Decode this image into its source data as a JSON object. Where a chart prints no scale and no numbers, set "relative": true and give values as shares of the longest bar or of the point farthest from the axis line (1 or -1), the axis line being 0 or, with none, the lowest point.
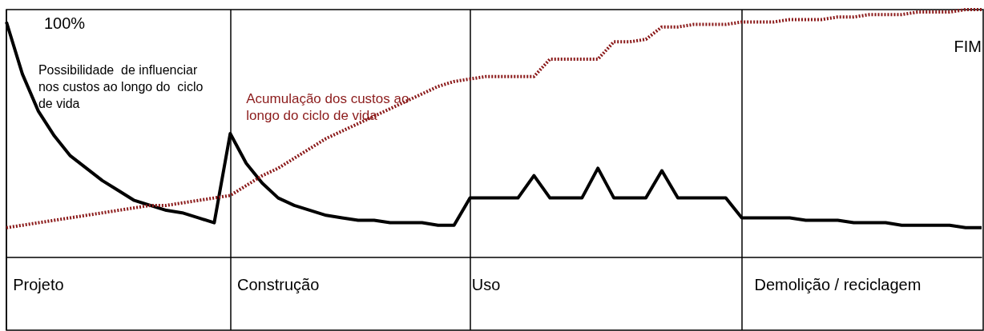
{
  "chart_data": {
    "type": "line",
    "relative": true,
    "legend": false,
    "grid": "x",
    "tick_labels": "x",
    "marker": "none",
    "categories": [
      null,
      null,
      "Projeto",
      null,
      null,
      null,
      null,
      null,
      null,
      null,
      null,
      null,
      null,
      null,
      null,
      null,
      null,
      "Construção",
      null,
      null,
      null,
      null,
      null,
      null,
      null,
      null,
      null,
      null,
      null,
      null,
      "Uso",
      null,
      null,
      null,
      null,
      null,
      null,
      null,
      null,
      null,
      null,
      null,
      null,
      null,
      null,
      null,
      null,
      null,
      null,
      null,
      null,
      null,
      "Demolição / reciclagem",
      null,
      null,
      null,
      null,
      null,
      null,
      null,
      null,
      null
    ],
    "series": [
      {
        "name": "Possibilidade  de influenciar nos custos ao longo do  ciclo de vida",
        "color": "#000000",
        "line_style": "solid",
        "values": [
          0.95,
          0.74,
          0.59,
          0.49,
          0.41,
          0.36,
          0.31,
          0.27,
          0.23,
          0.21,
          0.19,
          0.18,
          0.16,
          0.14,
          0.5,
          0.38,
          0.3,
          0.24,
          0.21,
          0.19,
          0.17,
          0.16,
          0.15,
          0.15,
          0.14,
          0.14,
          0.14,
          0.13,
          0.13,
          0.24,
          0.24,
          0.24,
          0.24,
          0.33,
          0.24,
          0.24,
          0.24,
          0.36,
          0.24,
          0.24,
          0.24,
          0.35,
          0.24,
          0.24,
          0.24,
          0.24,
          0.16,
          0.16,
          0.16,
          0.16,
          0.15,
          0.15,
          0.15,
          0.14,
          0.14,
          0.14,
          0.13,
          0.13,
          0.13,
          0.13,
          0.12,
          0.12
        ]
      },
      {
        "name": "Acumulação dos custos ao longo do ciclo de vida",
        "color": "#8b1a1a",
        "line_style": "dotted",
        "values": [
          0.12,
          0.13,
          0.14,
          0.15,
          0.16,
          0.17,
          0.18,
          0.19,
          0.2,
          0.21,
          0.21,
          0.22,
          0.23,
          0.24,
          0.25,
          0.29,
          0.33,
          0.36,
          0.4,
          0.44,
          0.48,
          0.51,
          0.54,
          0.57,
          0.6,
          0.63,
          0.66,
          0.69,
          0.71,
          0.72,
          0.73,
          0.73,
          0.73,
          0.73,
          0.8,
          0.8,
          0.8,
          0.8,
          0.87,
          0.87,
          0.88,
          0.93,
          0.93,
          0.94,
          0.94,
          0.94,
          0.95,
          0.95,
          0.95,
          0.96,
          0.96,
          0.96,
          0.97,
          0.97,
          0.98,
          0.98,
          0.98,
          0.99,
          0.99,
          0.99,
          1.0,
          1
        ]
      }
    ],
    "annotations": [
      "100%",
      "FIM"
    ]
  }
}
